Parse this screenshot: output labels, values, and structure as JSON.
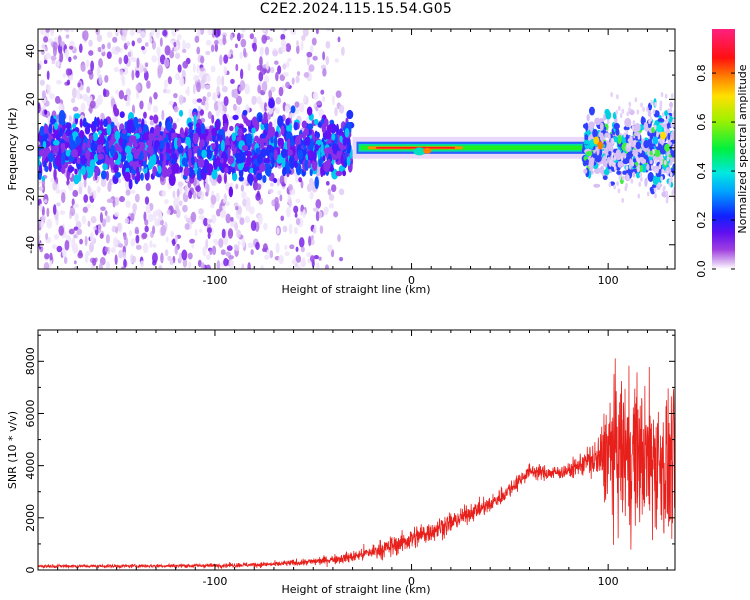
{
  "title": "C2E2.2024.115.15.54.G05",
  "colors": {
    "snr_line": "#e8201c",
    "axis": "#000000",
    "spectrogram_floor": "#ffffff"
  },
  "chart_data": [
    {
      "type": "heatmap",
      "xlabel": "Height of straight line (km)",
      "ylabel": "Frequency (Hz)",
      "xlim": [
        -190,
        134
      ],
      "ylim": [
        -50,
        49
      ],
      "xticks": [
        -100,
        0,
        100
      ],
      "yticks": [
        -40,
        -20,
        0,
        20,
        40
      ],
      "colorbar": {
        "label": "Normalized spectral amplitude",
        "range": [
          0.0,
          0.98
        ],
        "ticks": [
          0.0,
          0.2,
          0.4,
          0.6,
          0.8
        ],
        "colormap": "rainbow (magenta–blue–cyan–green–yellow–red–pink)"
      },
      "description_features": [
        {
          "segment": "x -190 to -30",
          "content": "noisy scattered purple/blue energy spread across all frequencies, dense band near 0 Hz"
        },
        {
          "segment": "x -30 to 90",
          "content": "narrow coherent band at 0 Hz, green with red/yellow near x 0 to 20"
        },
        {
          "segment": "x 90 to 134",
          "content": "broadened band near 0 Hz, blue/green with cyan and yellow peaks near x 95 and x 128"
        }
      ]
    },
    {
      "type": "line",
      "xlabel": "Height of straight line (km)",
      "ylabel": "SNR (10 * v/v)",
      "xlim": [
        -190,
        134
      ],
      "ylim": [
        0,
        9200
      ],
      "xticks": [
        -100,
        0,
        100
      ],
      "yticks": [
        0,
        2000,
        4000,
        6000,
        8000
      ],
      "series": [
        {
          "color": "#e8201c",
          "envelope": {
            "x": [
              -190,
              -150,
              -100,
              -70,
              -50,
              -30,
              -10,
              0,
              10,
              20,
              30,
              40,
              50,
              60,
              70,
              80,
              90,
              95,
              100,
              105,
              110,
              115,
              120,
              125,
              130,
              134
            ],
            "mean": [
              150,
              150,
              170,
              220,
              320,
              500,
              900,
              1200,
              1500,
              1800,
              2200,
              2500,
              3100,
              3800,
              3700,
              3800,
              4200,
              4200,
              4500,
              4500,
              4500,
              4400,
              4300,
              4200,
              3900,
              4200
            ],
            "spread": [
              60,
              60,
              70,
              90,
              130,
              200,
              350,
              400,
              400,
              350,
              300,
              300,
              300,
              250,
              250,
              250,
              500,
              900,
              2000,
              2600,
              2700,
              2600,
              2500,
              2600,
              2600,
              2400
            ]
          }
        }
      ]
    }
  ]
}
